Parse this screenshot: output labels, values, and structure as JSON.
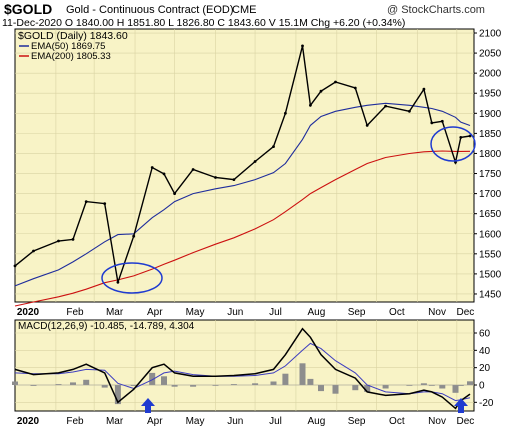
{
  "header": {
    "symbol": "$GOLD",
    "description": "Gold - Continuous Contract (EOD)",
    "exchange": "CME",
    "watermark": "@ StockCharts.com",
    "info_line": "11-Dec-2020   O 1840.00   H 1851.80   L 1826.80   C 1843.60   V 15.1M   Chg +6.20 (+0.34%)"
  },
  "colors": {
    "panel_bg": "#f8f3c6",
    "price": "#000000",
    "ema50": "#1f2d9c",
    "ema200": "#cc1111",
    "macd": "#000000",
    "signal": "#3d3dc0",
    "histogram": "#8d8d8d",
    "annotation": "#1f3bd0"
  },
  "chart_data": [
    {
      "type": "line",
      "title": "$GOLD (Daily) 1843.60",
      "legend_position": "top-left",
      "ylim": [
        1430,
        2110
      ],
      "y_ticks": [
        1450,
        1500,
        1550,
        1600,
        1650,
        1700,
        1750,
        1800,
        1850,
        1900,
        1950,
        2000,
        2050,
        2100
      ],
      "x_tick_labels": [
        "2020",
        "Feb",
        "Mar",
        "Apr",
        "May",
        "Jun",
        "Jul",
        "Aug",
        "Sep",
        "Oct",
        "Nov",
        "Dec"
      ],
      "grid": true,
      "x": [
        "2020-01-01",
        "2020-01-15",
        "2020-02-03",
        "2020-02-14",
        "2020-02-24",
        "2020-03-09",
        "2020-03-19",
        "2020-03-31",
        "2020-04-14",
        "2020-04-23",
        "2020-05-01",
        "2020-05-15",
        "2020-06-01",
        "2020-06-15",
        "2020-07-01",
        "2020-07-15",
        "2020-07-24",
        "2020-08-06",
        "2020-08-12",
        "2020-08-20",
        "2020-08-31",
        "2020-09-15",
        "2020-09-24",
        "2020-10-08",
        "2020-10-26",
        "2020-11-06",
        "2020-11-12",
        "2020-11-20",
        "2020-11-30",
        "2020-12-04",
        "2020-12-11"
      ],
      "series": [
        {
          "name": "$GOLD (Daily) 1843.60",
          "values": [
            1520,
            1557,
            1582,
            1586,
            1680,
            1675,
            1479,
            1594,
            1765,
            1749,
            1700,
            1760,
            1740,
            1735,
            1780,
            1817,
            1900,
            2068,
            1920,
            1955,
            1978,
            1963,
            1870,
            1918,
            1905,
            1960,
            1876,
            1880,
            1778,
            1840,
            1843.6
          ]
        },
        {
          "name": "EMA(50) 1869.75",
          "values": [
            1470,
            1488,
            1510,
            1530,
            1550,
            1580,
            1598,
            1600,
            1640,
            1660,
            1680,
            1700,
            1712,
            1720,
            1735,
            1752,
            1775,
            1835,
            1870,
            1892,
            1905,
            1915,
            1920,
            1925,
            1920,
            1915,
            1912,
            1905,
            1890,
            1878,
            1869.75
          ]
        },
        {
          "name": "EMA(200) 1805.33",
          "values": [
            1420,
            1430,
            1443,
            1452,
            1462,
            1478,
            1485,
            1495,
            1512,
            1524,
            1534,
            1553,
            1574,
            1590,
            1612,
            1635,
            1655,
            1685,
            1700,
            1715,
            1735,
            1760,
            1775,
            1790,
            1800,
            1804,
            1805,
            1806,
            1805,
            1805,
            1805.33
          ]
        }
      ]
    },
    {
      "type": "line",
      "title": "MACD(12,26,9) -10.485, -14.789, 4.304",
      "legend_position": "top-left",
      "ylim": [
        -30,
        75
      ],
      "y_ticks": [
        -20,
        0,
        20,
        40,
        60
      ],
      "x_tick_labels": [
        "2020",
        "Feb",
        "Mar",
        "Apr",
        "May",
        "Jun",
        "Jul",
        "Aug",
        "Sep",
        "Oct",
        "Nov",
        "Dec"
      ],
      "grid": true,
      "x": [
        "2020-01-01",
        "2020-01-15",
        "2020-02-03",
        "2020-02-14",
        "2020-02-24",
        "2020-03-09",
        "2020-03-19",
        "2020-03-31",
        "2020-04-14",
        "2020-04-23",
        "2020-05-01",
        "2020-05-15",
        "2020-06-01",
        "2020-06-15",
        "2020-07-01",
        "2020-07-15",
        "2020-07-24",
        "2020-08-06",
        "2020-08-12",
        "2020-08-20",
        "2020-08-31",
        "2020-09-15",
        "2020-09-24",
        "2020-10-08",
        "2020-10-26",
        "2020-11-06",
        "2020-11-12",
        "2020-11-20",
        "2020-11-30",
        "2020-12-04",
        "2020-12-11"
      ],
      "series": [
        {
          "name": "MACD",
          "values": [
            18,
            12,
            14,
            18,
            24,
            14,
            -20,
            -5,
            20,
            24,
            14,
            10,
            10,
            11,
            13,
            18,
            35,
            65,
            55,
            35,
            18,
            8,
            -8,
            -12,
            -10,
            -6,
            -8,
            -14,
            -27,
            -18,
            -10.485
          ]
        },
        {
          "name": "Signal",
          "values": [
            14,
            13,
            13,
            15,
            18,
            17,
            2,
            -4,
            6,
            14,
            16,
            12,
            10,
            10,
            11,
            14,
            22,
            40,
            48,
            42,
            28,
            14,
            0,
            -8,
            -10,
            -8,
            -8,
            -10,
            -18,
            -17,
            -14.789
          ]
        },
        {
          "name": "Histogram",
          "values": [
            4,
            -1,
            1,
            3,
            6,
            -3,
            -22,
            -1,
            14,
            10,
            -2,
            -2,
            0,
            1,
            2,
            4,
            13,
            25,
            7,
            -7,
            -10,
            -6,
            -8,
            -4,
            0,
            2,
            0,
            -4,
            -9,
            -1,
            4.304
          ]
        }
      ]
    }
  ]
}
